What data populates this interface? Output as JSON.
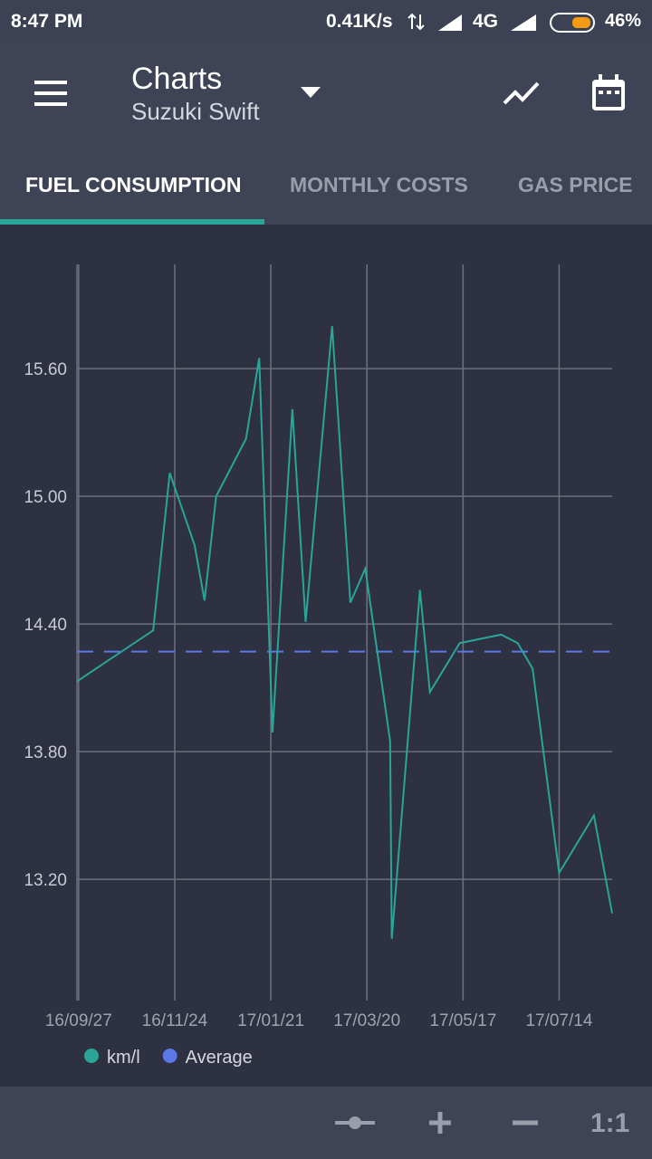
{
  "status_bar": {
    "time": "8:47 PM",
    "speed": "0.41K/s",
    "network": "4G",
    "battery": "46%"
  },
  "toolbar": {
    "title": "Charts",
    "subtitle": "Suzuki Swift"
  },
  "tabs": [
    "FUEL CONSUMPTION",
    "MONTHLY COSTS",
    "GAS PRICE"
  ],
  "bottom_bar": {
    "reset_zoom": "1:1"
  },
  "chart_data": {
    "type": "line",
    "x": [
      "16/09/26",
      "16/11/11",
      "16/11/21",
      "16/12/06",
      "16/12/12",
      "16/12/19",
      "17/01/06",
      "17/01/14",
      "17/01/22",
      "17/02/03",
      "17/02/11",
      "17/02/27",
      "17/03/10",
      "17/03/19",
      "17/04/03",
      "17/04/04",
      "17/04/21",
      "17/04/27",
      "17/05/15",
      "17/06/09",
      "17/06/19",
      "17/06/28",
      "17/07/14",
      "17/08/04",
      "17/08/15"
    ],
    "series": [
      {
        "name": "km/l",
        "color": "#2aa598",
        "values": [
          14.13,
          14.37,
          15.11,
          14.77,
          14.51,
          15.0,
          15.27,
          15.65,
          13.89,
          15.41,
          14.41,
          15.8,
          14.5,
          14.66,
          13.85,
          12.92,
          14.56,
          14.08,
          14.31,
          14.35,
          14.31,
          14.19,
          13.23,
          13.5,
          13.04
        ]
      }
    ],
    "reference_line": {
      "name": "Average",
      "value": 14.27,
      "color": "#5b78e6",
      "dashed": true
    },
    "xlim": [
      "16/09/26",
      "17/08/15"
    ],
    "xticks": [
      "16/09/27",
      "16/11/24",
      "17/01/21",
      "17/03/20",
      "17/05/17",
      "17/07/14"
    ],
    "ylim": [
      12.63,
      16.09
    ],
    "yticks": [
      {
        "value": 13.2,
        "label": "13.20"
      },
      {
        "value": 13.8,
        "label": "13.80"
      },
      {
        "value": 14.4,
        "label": "14.40"
      },
      {
        "value": 15.0,
        "label": "15.00"
      },
      {
        "value": 15.6,
        "label": "15.60"
      }
    ],
    "grid": true
  }
}
